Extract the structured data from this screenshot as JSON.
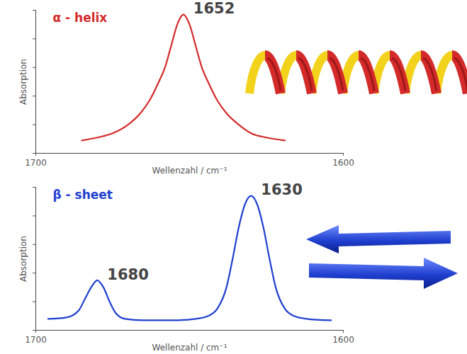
{
  "chart_data": [
    {
      "type": "line",
      "title": "α - helix",
      "color": "#d42a2a",
      "x_label": "Wellenzahl / cm⁻¹",
      "y_label": "Absorption",
      "x": [
        1685,
        1680,
        1675,
        1670,
        1666,
        1663,
        1660,
        1658,
        1656,
        1654,
        1652,
        1650,
        1648,
        1646,
        1644,
        1641,
        1638,
        1634,
        1630,
        1625,
        1619
      ],
      "values": [
        0.09,
        0.11,
        0.14,
        0.2,
        0.28,
        0.37,
        0.5,
        0.6,
        0.75,
        0.9,
        0.97,
        0.9,
        0.75,
        0.6,
        0.5,
        0.37,
        0.28,
        0.2,
        0.14,
        0.11,
        0.09
      ],
      "xlim": [
        1700,
        1600
      ],
      "xticks": [
        1700,
        1600
      ],
      "ylim": [
        0,
        1
      ],
      "yticks": [
        0,
        0.2,
        0.4,
        0.6,
        0.8,
        1
      ],
      "tick_labels": "x",
      "grid": false,
      "annotations": [
        {
          "text": "1652",
          "x": 1652,
          "y": 0.97
        }
      ]
    },
    {
      "type": "line",
      "title": "β - sheet",
      "color": "#1f3fcf",
      "x_label": "Wellenzahl / cm⁻¹",
      "y_label": "Absorption",
      "x": [
        1696,
        1690,
        1686,
        1684,
        1682,
        1680,
        1678,
        1676,
        1674,
        1671,
        1665,
        1655,
        1648,
        1644,
        1641,
        1638,
        1636,
        1634,
        1632,
        1630,
        1628,
        1626,
        1624,
        1622,
        1619,
        1616,
        1612,
        1604
      ],
      "values": [
        0.08,
        0.09,
        0.14,
        0.22,
        0.3,
        0.35,
        0.3,
        0.2,
        0.12,
        0.08,
        0.07,
        0.07,
        0.08,
        0.1,
        0.15,
        0.3,
        0.5,
        0.72,
        0.88,
        0.94,
        0.88,
        0.72,
        0.5,
        0.3,
        0.15,
        0.1,
        0.08,
        0.07
      ],
      "xlim": [
        1700,
        1600
      ],
      "xticks": [
        1700,
        1600
      ],
      "ylim": [
        0,
        1
      ],
      "yticks": [
        0,
        0.2,
        0.4,
        0.6,
        0.8,
        1
      ],
      "tick_labels": "x",
      "grid": false,
      "annotations": [
        {
          "text": "1680",
          "x": 1680,
          "y": 0.35
        },
        {
          "text": "1630",
          "x": 1630,
          "y": 0.94
        }
      ]
    }
  ]
}
